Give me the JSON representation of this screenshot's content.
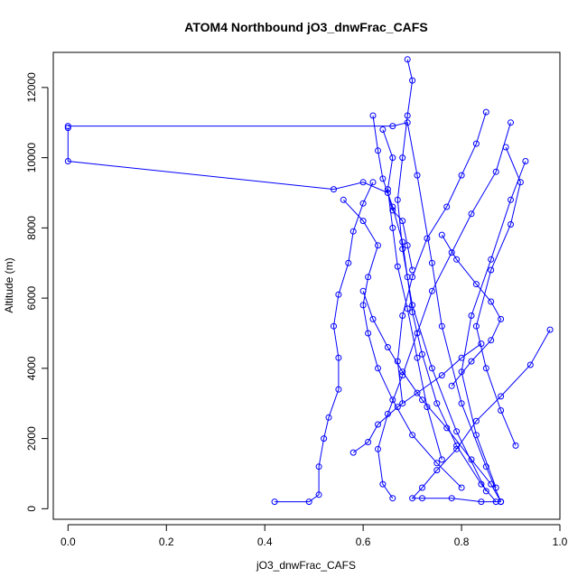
{
  "chart_data": {
    "type": "line",
    "title": "ATOM4 Northbound jO3_dnwFrac_CAFS",
    "xlabel": "jO3_dnwFrac_CAFS",
    "ylabel": "Altitude (m)",
    "xlim": [
      -0.03,
      1.0
    ],
    "ylim": [
      -300,
      13000
    ],
    "x_ticks": [
      "0.0",
      "0.2",
      "0.4",
      "0.6",
      "0.8",
      "1.0"
    ],
    "y_ticks": [
      "0",
      "2000",
      "4000",
      "6000",
      "8000",
      "10000",
      "12000"
    ],
    "grid": false,
    "marker": "open-circle",
    "series_color": "#0000ff",
    "series": [
      {
        "x": [
          0.0,
          0.0,
          0.54,
          0.6,
          0.65,
          0.66,
          0.68,
          0.69,
          0.7
        ],
        "y": [
          10850,
          9900,
          9100,
          9300,
          9000,
          8500,
          8200,
          7500,
          6800
        ]
      },
      {
        "x": [
          0.0,
          0.66,
          0.69,
          0.71,
          0.74,
          0.76,
          0.8,
          0.85,
          0.88
        ],
        "y": [
          10900,
          10900,
          11000,
          9500,
          7000,
          5200,
          3000,
          1200,
          200
        ]
      },
      {
        "x": [
          0.42,
          0.49,
          0.51,
          0.51,
          0.52,
          0.53,
          0.55,
          0.55,
          0.54,
          0.55,
          0.57,
          0.58,
          0.6,
          0.62
        ],
        "y": [
          200,
          200,
          400,
          1200,
          2000,
          2600,
          3400,
          4300,
          5200,
          6100,
          7000,
          7900,
          8700,
          9300
        ]
      },
      {
        "x": [
          0.62,
          0.63,
          0.64,
          0.66,
          0.68,
          0.69,
          0.7,
          0.72,
          0.75,
          0.79,
          0.84,
          0.87
        ],
        "y": [
          11200,
          10200,
          9400,
          8600,
          7600,
          6600,
          5600,
          4400,
          3000,
          1800,
          700,
          200
        ]
      },
      {
        "x": [
          0.69,
          0.7,
          0.69,
          0.68,
          0.67,
          0.68,
          0.7,
          0.74,
          0.79,
          0.85
        ],
        "y": [
          12800,
          12200,
          11200,
          10000,
          8800,
          7400,
          5800,
          4000,
          2200,
          500
        ]
      },
      {
        "x": [
          0.9,
          0.87,
          0.82,
          0.78,
          0.74,
          0.71,
          0.68,
          0.65,
          0.63,
          0.64,
          0.66
        ],
        "y": [
          11000,
          9600,
          8400,
          7300,
          6200,
          5000,
          3800,
          2700,
          1700,
          700,
          300
        ]
      },
      {
        "x": [
          0.98,
          0.94,
          0.88,
          0.83,
          0.79,
          0.75,
          0.72,
          0.7,
          0.72,
          0.78,
          0.84,
          0.88
        ],
        "y": [
          5100,
          4100,
          3200,
          2500,
          1700,
          1100,
          600,
          300,
          300,
          300,
          200,
          200
        ]
      },
      {
        "x": [
          0.93,
          0.9,
          0.86,
          0.82,
          0.8,
          0.83,
          0.87
        ],
        "y": [
          9900,
          8800,
          7100,
          5500,
          3900,
          2100,
          600
        ]
      },
      {
        "x": [
          0.56,
          0.6,
          0.63,
          0.61,
          0.6,
          0.61,
          0.63,
          0.66,
          0.7,
          0.75,
          0.8
        ],
        "y": [
          8800,
          8200,
          7500,
          6600,
          5800,
          5000,
          4000,
          3100,
          2100,
          1300,
          600
        ]
      },
      {
        "x": [
          0.64,
          0.66,
          0.65,
          0.66,
          0.67,
          0.69,
          0.71,
          0.73,
          0.76
        ],
        "y": [
          10800,
          10000,
          9100,
          8000,
          6900,
          5700,
          4300,
          2900,
          1400
        ]
      },
      {
        "x": [
          0.85,
          0.83,
          0.8,
          0.77,
          0.73,
          0.7,
          0.68,
          0.67,
          0.68
        ],
        "y": [
          11300,
          10400,
          9500,
          8600,
          7700,
          6600,
          5500,
          4200,
          3000
        ]
      },
      {
        "x": [
          0.89,
          0.92,
          0.9,
          0.86,
          0.83,
          0.85,
          0.88,
          0.91
        ],
        "y": [
          10300,
          9300,
          8100,
          6800,
          5200,
          4000,
          2800,
          1800
        ]
      },
      {
        "x": [
          0.6,
          0.62,
          0.65,
          0.68,
          0.72,
          0.77,
          0.82,
          0.86,
          0.88
        ],
        "y": [
          6200,
          5400,
          4600,
          3900,
          3100,
          2300,
          1400,
          700,
          200
        ]
      },
      {
        "x": [
          0.58,
          0.61,
          0.63,
          0.67,
          0.71,
          0.76,
          0.8,
          0.84
        ],
        "y": [
          1600,
          1900,
          2400,
          2900,
          3300,
          3800,
          4300,
          4700
        ]
      },
      {
        "x": [
          0.76,
          0.79,
          0.83,
          0.86,
          0.88,
          0.86,
          0.82,
          0.78
        ],
        "y": [
          7800,
          7100,
          6400,
          5900,
          5400,
          4800,
          4200,
          3500
        ]
      }
    ]
  }
}
